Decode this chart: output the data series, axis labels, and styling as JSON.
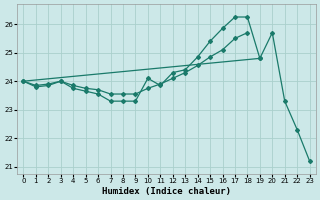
{
  "xlabel": "Humidex (Indice chaleur)",
  "background_color": "#cce8e8",
  "line_color": "#1a7a6a",
  "grid_color": "#aad0cc",
  "xlim": [
    -0.5,
    23.5
  ],
  "ylim": [
    20.75,
    26.7
  ],
  "xticks": [
    0,
    1,
    2,
    3,
    4,
    5,
    6,
    7,
    8,
    9,
    10,
    11,
    12,
    13,
    14,
    15,
    16,
    17,
    18,
    19,
    20,
    21,
    22,
    23
  ],
  "yticks": [
    21,
    22,
    23,
    24,
    25,
    26
  ],
  "line1_x": [
    0,
    1,
    2,
    3,
    4,
    5,
    6,
    7,
    8,
    9,
    10,
    11,
    12,
    13,
    14,
    15,
    16,
    17,
    18,
    19
  ],
  "line1_y": [
    24.0,
    23.8,
    23.85,
    24.0,
    23.75,
    23.65,
    23.55,
    23.3,
    23.3,
    23.3,
    24.1,
    23.85,
    24.3,
    24.4,
    24.85,
    25.4,
    25.85,
    26.25,
    26.25,
    24.8
  ],
  "line2_x": [
    0,
    1,
    2,
    3,
    4,
    5,
    6,
    7,
    8,
    9,
    10,
    11,
    12,
    13,
    14,
    15,
    16,
    17,
    18
  ],
  "line2_y": [
    24.0,
    23.85,
    23.9,
    24.0,
    23.85,
    23.75,
    23.7,
    23.55,
    23.55,
    23.55,
    23.75,
    23.9,
    24.1,
    24.3,
    24.55,
    24.85,
    25.1,
    25.5,
    25.7
  ],
  "line3_x": [
    0,
    19,
    20,
    21,
    22,
    23
  ],
  "line3_y": [
    24.0,
    24.8,
    25.7,
    23.3,
    22.3,
    21.2
  ]
}
